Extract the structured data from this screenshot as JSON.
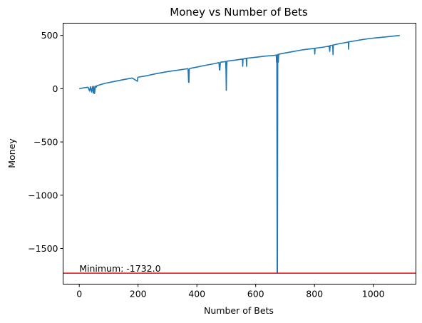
{
  "chart_data": {
    "type": "line",
    "title": "Money vs Number of Bets",
    "xlabel": "Number of Bets",
    "ylabel": "Money",
    "xlim": [
      -55,
      1145
    ],
    "ylim": [
      -1835,
      615
    ],
    "xticks": [
      0,
      200,
      400,
      600,
      800,
      1000
    ],
    "yticks": [
      -1500,
      -1000,
      -500,
      0,
      500
    ],
    "ytick_labels": [
      "−1500",
      "−1000",
      "−500",
      "0",
      "500"
    ],
    "grid": false,
    "series": [
      {
        "color": "#1f77b4",
        "x": [
          0,
          15,
          30,
          35,
          38,
          42,
          45,
          48,
          50,
          52,
          55,
          58,
          60,
          75,
          90,
          120,
          150,
          180,
          198,
          199,
          200,
          230,
          260,
          300,
          330,
          360,
          370,
          372,
          373,
          374,
          376,
          380,
          400,
          430,
          460,
          475,
          477,
          478,
          480,
          498,
          499,
          500,
          501,
          502,
          530,
          555,
          556,
          557,
          568,
          569,
          570,
          600,
          630,
          660,
          670,
          671,
          672,
          673,
          674,
          675,
          676,
          677,
          678,
          679,
          680,
          700,
          730,
          760,
          790,
          800,
          801,
          802,
          830,
          850,
          852,
          853,
          862,
          863,
          864,
          880,
          900,
          915,
          916,
          917,
          940,
          960,
          990,
          1020,
          1050,
          1070,
          1090
        ],
        "y": [
          0,
          8,
          14,
          -22,
          18,
          -32,
          20,
          -42,
          22,
          -45,
          24,
          15,
          28,
          40,
          52,
          68,
          85,
          100,
          70,
          105,
          108,
          122,
          140,
          160,
          172,
          184,
          188,
          60,
          60,
          180,
          190,
          192,
          203,
          220,
          235,
          245,
          175,
          175,
          248,
          255,
          180,
          -15,
          180,
          258,
          268,
          278,
          210,
          278,
          285,
          210,
          286,
          295,
          305,
          312,
          315,
          250,
          318,
          -1732,
          -1732,
          310,
          322,
          250,
          322,
          318,
          325,
          335,
          350,
          365,
          375,
          378,
          325,
          380,
          390,
          400,
          350,
          405,
          408,
          320,
          410,
          420,
          430,
          438,
          370,
          440,
          450,
          460,
          472,
          480,
          488,
          494,
          500
        ]
      }
    ],
    "hline": {
      "y": -1732.0,
      "color": "#ff0000"
    },
    "annotation": {
      "text": "Minimum: -1732.0",
      "x": 0,
      "y": -1732.0
    }
  }
}
